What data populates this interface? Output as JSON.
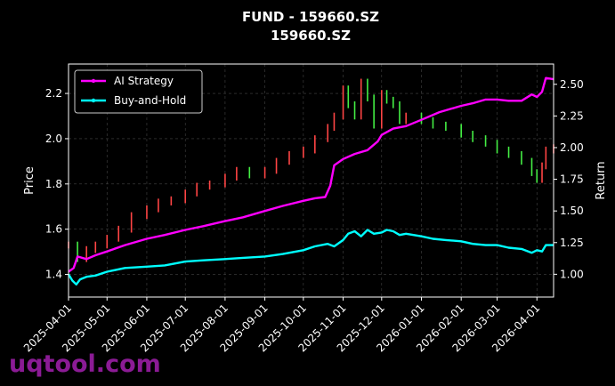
{
  "watermark": "uqtool.com",
  "colors": {
    "background": "#000000",
    "ai_strategy": "#ff00ff",
    "buy_and_hold": "#00ffff",
    "candle_up": "#ff4444",
    "candle_down": "#44ee44",
    "grid": "#444444",
    "watermark": "#9b1fa6"
  },
  "chart_data": {
    "type": "line",
    "title": "FUND - 159660.SZ",
    "subtitle": "159660.SZ",
    "xlabel": "",
    "ylabel": "Price",
    "y2label": "Return",
    "xlim": [
      "2025-04-01",
      "2026-04-14"
    ],
    "ylim": [
      1.3,
      2.33
    ],
    "y2lim": [
      0.82,
      2.66
    ],
    "grid": true,
    "legend_position": "top-left",
    "x_ticks": [
      "2025-04-01",
      "2025-05-01",
      "2025-06-01",
      "2025-07-01",
      "2025-08-01",
      "2025-09-01",
      "2025-10-01",
      "2025-11-01",
      "2025-12-01",
      "2026-01-01",
      "2026-02-01",
      "2026-03-01",
      "2026-04-01"
    ],
    "y_ticks": [
      "1.4",
      "1.6",
      "1.8",
      "2.0",
      "2.2"
    ],
    "y2_ticks": [
      "1.00",
      "1.25",
      "1.50",
      "1.75",
      "2.00",
      "2.25",
      "2.50"
    ],
    "series": [
      {
        "name": "AI Strategy",
        "axis": "right",
        "x": [
          "2025-04-01",
          "2025-04-05",
          "2025-04-08",
          "2025-04-15",
          "2025-04-22",
          "2025-05-01",
          "2025-05-15",
          "2025-06-01",
          "2025-06-15",
          "2025-07-01",
          "2025-07-15",
          "2025-08-01",
          "2025-08-15",
          "2025-09-01",
          "2025-09-15",
          "2025-10-01",
          "2025-10-10",
          "2025-10-18",
          "2025-10-22",
          "2025-10-25",
          "2025-11-01",
          "2025-11-10",
          "2025-11-20",
          "2025-11-28",
          "2025-12-01",
          "2025-12-10",
          "2025-12-20",
          "2026-01-01",
          "2026-01-15",
          "2026-02-01",
          "2026-02-10",
          "2026-02-20",
          "2026-03-01",
          "2026-03-10",
          "2026-03-20",
          "2026-03-28",
          "2026-04-01",
          "2026-04-05",
          "2026-04-08",
          "2026-04-14"
        ],
        "values": [
          1.02,
          1.05,
          1.14,
          1.12,
          1.15,
          1.18,
          1.23,
          1.28,
          1.31,
          1.35,
          1.38,
          1.42,
          1.45,
          1.5,
          1.54,
          1.58,
          1.6,
          1.61,
          1.7,
          1.86,
          1.91,
          1.95,
          1.98,
          2.05,
          2.1,
          2.15,
          2.17,
          2.22,
          2.28,
          2.33,
          2.35,
          2.38,
          2.38,
          2.37,
          2.37,
          2.42,
          2.4,
          2.44,
          2.55,
          2.54
        ]
      },
      {
        "name": "Buy-and-Hold",
        "axis": "right",
        "x": [
          "2025-04-01",
          "2025-04-04",
          "2025-04-07",
          "2025-04-10",
          "2025-04-15",
          "2025-04-22",
          "2025-05-01",
          "2025-05-15",
          "2025-06-01",
          "2025-06-15",
          "2025-07-01",
          "2025-07-15",
          "2025-08-01",
          "2025-08-15",
          "2025-09-01",
          "2025-09-15",
          "2025-10-01",
          "2025-10-10",
          "2025-10-20",
          "2025-10-25",
          "2025-11-01",
          "2025-11-05",
          "2025-11-10",
          "2025-11-15",
          "2025-11-20",
          "2025-11-25",
          "2025-12-01",
          "2025-12-05",
          "2025-12-10",
          "2025-12-15",
          "2025-12-20",
          "2026-01-01",
          "2026-01-10",
          "2026-01-20",
          "2026-02-01",
          "2026-02-10",
          "2026-02-20",
          "2026-03-01",
          "2026-03-10",
          "2026-03-20",
          "2026-03-28",
          "2026-04-01",
          "2026-04-05",
          "2026-04-08",
          "2026-04-14"
        ],
        "values": [
          1.0,
          0.95,
          0.92,
          0.96,
          0.98,
          0.99,
          1.02,
          1.05,
          1.06,
          1.07,
          1.1,
          1.11,
          1.12,
          1.13,
          1.14,
          1.16,
          1.19,
          1.22,
          1.24,
          1.22,
          1.27,
          1.32,
          1.34,
          1.3,
          1.35,
          1.32,
          1.33,
          1.35,
          1.34,
          1.31,
          1.32,
          1.3,
          1.28,
          1.27,
          1.26,
          1.24,
          1.23,
          1.23,
          1.21,
          1.2,
          1.17,
          1.19,
          1.18,
          1.23,
          1.23
        ]
      },
      {
        "name": "",
        "type": "candlestick",
        "axis": "left",
        "x": [
          "2025-04-01",
          "2025-04-08",
          "2025-04-15",
          "2025-04-22",
          "2025-05-01",
          "2025-05-10",
          "2025-05-20",
          "2025-06-01",
          "2025-06-10",
          "2025-06-20",
          "2025-07-01",
          "2025-07-10",
          "2025-07-20",
          "2025-08-01",
          "2025-08-10",
          "2025-08-20",
          "2025-09-01",
          "2025-09-10",
          "2025-09-20",
          "2025-10-01",
          "2025-10-10",
          "2025-10-20",
          "2025-10-25",
          "2025-11-01",
          "2025-11-05",
          "2025-11-10",
          "2025-11-15",
          "2025-11-20",
          "2025-11-25",
          "2025-12-01",
          "2025-12-05",
          "2025-12-10",
          "2025-12-15",
          "2025-12-20",
          "2026-01-01",
          "2026-01-10",
          "2026-01-20",
          "2026-02-01",
          "2026-02-10",
          "2026-02-20",
          "2026-03-01",
          "2026-03-10",
          "2026-03-20",
          "2026-03-28",
          "2026-04-01",
          "2026-04-05",
          "2026-04-08",
          "2026-04-14"
        ],
        "values": [
          1.53,
          1.47,
          1.51,
          1.53,
          1.56,
          1.6,
          1.66,
          1.69,
          1.72,
          1.73,
          1.76,
          1.79,
          1.8,
          1.83,
          1.86,
          1.84,
          1.86,
          1.9,
          1.93,
          1.95,
          2.0,
          2.05,
          2.1,
          2.22,
          2.15,
          2.1,
          2.25,
          2.18,
          2.06,
          2.2,
          2.17,
          2.15,
          2.08,
          2.1,
          2.08,
          2.06,
          2.05,
          2.02,
          2.0,
          1.98,
          1.95,
          1.93,
          1.9,
          1.85,
          1.82,
          1.88,
          1.95,
          1.96
        ]
      }
    ]
  }
}
